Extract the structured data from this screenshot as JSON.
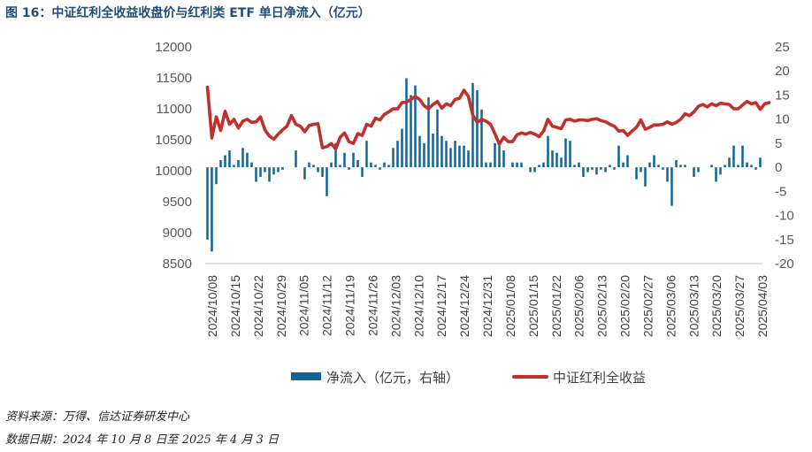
{
  "figure": {
    "title": "图 16：中证红利全收益收盘价与红利类 ETF 单日净流入（亿元）",
    "source": "资料来源：万得、信达证券研发中心",
    "date_range": "数据日期：2024 年 10 月 8 日至 2025 年 4 月 3 日"
  },
  "colors": {
    "bar": "#0e6597",
    "line": "#c0312b",
    "axis": "#bfbfbf",
    "text": "#595959"
  },
  "chart_data": {
    "type": "bar+line",
    "legend": {
      "position": "bottom",
      "entries": [
        "净流入（亿元，右轴）",
        "中证红利全收益"
      ]
    },
    "left_axis": {
      "min": 8500,
      "max": 12000,
      "step": 500,
      "ticks": [
        "12000",
        "11500",
        "11000",
        "10500",
        "10000",
        "9500",
        "9000",
        "8500"
      ]
    },
    "right_axis": {
      "min": -20,
      "max": 25,
      "step": 5,
      "ticks": [
        "25",
        "20",
        "15",
        "10",
        "5",
        "0",
        "-5",
        "-10",
        "-15",
        "-20"
      ]
    },
    "x_tick_labels": [
      "2024/10/08",
      "2024/10/15",
      "2024/10/22",
      "2024/10/29",
      "2024/11/05",
      "2024/11/12",
      "2024/11/19",
      "2024/11/26",
      "2024/12/03",
      "2024/12/10",
      "2024/12/17",
      "2024/12/24",
      "2024/12/31",
      "2025/01/08",
      "2025/01/15",
      "2025/01/22",
      "2025/02/06",
      "2025/02/13",
      "2025/02/20",
      "2025/02/27",
      "2025/03/06",
      "2025/03/13",
      "2025/03/20",
      "2025/03/27",
      "2025/04/03"
    ],
    "series": [
      {
        "name": "净流入（亿元，右轴）",
        "type": "bar",
        "axis": "right",
        "values": [
          -15.0,
          -17.5,
          -3.5,
          1.5,
          2.5,
          3.5,
          0.5,
          1.5,
          4.0,
          3.0,
          1.0,
          -3.0,
          -2.0,
          -1.0,
          -3.0,
          -1.5,
          -1.0,
          -0.5,
          0.0,
          0.0,
          3.5,
          0.0,
          -2.5,
          1.0,
          0.5,
          -1.0,
          -2.0,
          -6.0,
          1.0,
          5.0,
          0.5,
          3.0,
          -0.5,
          3.0,
          1.5,
          -2.0,
          5.5,
          1.0,
          0.5,
          -0.5,
          1.0,
          0.5,
          4.0,
          5.5,
          8.0,
          18.5,
          15.0,
          17.0,
          6.5,
          5.0,
          14.5,
          7.0,
          12.0,
          6.5,
          5.5,
          4.0,
          5.5,
          4.5,
          4.5,
          3.5,
          17.5,
          16.0,
          12.0,
          1.0,
          1.0,
          5.0,
          4.5,
          3.5,
          0.0,
          1.0,
          1.0,
          1.0,
          0.0,
          -1.0,
          -1.0,
          0.5,
          1.0,
          6.5,
          3.5,
          3.0,
          2.0,
          6.0,
          5.5,
          0.5,
          1.0,
          -2.0,
          -1.0,
          -0.5,
          -1.5,
          -0.5,
          -1.0,
          0.5,
          -0.5,
          4.5,
          1.0,
          2.5,
          0.0,
          -2.5,
          -1.0,
          -4.0,
          1.0,
          2.5,
          0.5,
          -0.5,
          -3.0,
          -8.0,
          1.5,
          0.5,
          0.5,
          0.0,
          -2.0,
          -1.0,
          0.0,
          0.0,
          0.5,
          -3.0,
          -1.5,
          0.5,
          2.0,
          4.5,
          0.5,
          4.5,
          1.0,
          0.5,
          -0.5,
          2.0
        ]
      },
      {
        "name": "中证红利全收益",
        "type": "line",
        "axis": "left",
        "values": [
          11350,
          10530,
          10870,
          10650,
          10960,
          10750,
          10830,
          10690,
          10800,
          10830,
          10780,
          10790,
          10870,
          10660,
          10560,
          10510,
          10590,
          10660,
          10720,
          10890,
          10750,
          10720,
          10630,
          10730,
          10750,
          10760,
          10370,
          10390,
          10440,
          10350,
          10540,
          10610,
          10470,
          10440,
          10600,
          10570,
          10750,
          10720,
          10850,
          10820,
          10910,
          10950,
          11000,
          11000,
          11100,
          11110,
          11150,
          11200,
          11150,
          11050,
          11000,
          11070,
          11120,
          11010,
          11080,
          11050,
          11150,
          11170,
          11300,
          11200,
          10900,
          10780,
          10830,
          10800,
          10750,
          10600,
          10430,
          10540,
          10470,
          10470,
          10580,
          10610,
          10590,
          10620,
          10590,
          10550,
          10640,
          10830,
          10720,
          10700,
          10680,
          10820,
          10830,
          10800,
          10820,
          10820,
          10810,
          10830,
          10840,
          10810,
          10790,
          10750,
          10720,
          10640,
          10650,
          10570,
          10640,
          10700,
          10820,
          10670,
          10700,
          10740,
          10740,
          10750,
          10790,
          10750,
          10780,
          10830,
          10920,
          10890,
          10950,
          11040,
          11070,
          11030,
          11080,
          11050,
          11090,
          11080,
          11070,
          11000,
          11000,
          11060,
          11120,
          11080,
          11100,
          10990,
          11080,
          11100
        ]
      }
    ]
  }
}
